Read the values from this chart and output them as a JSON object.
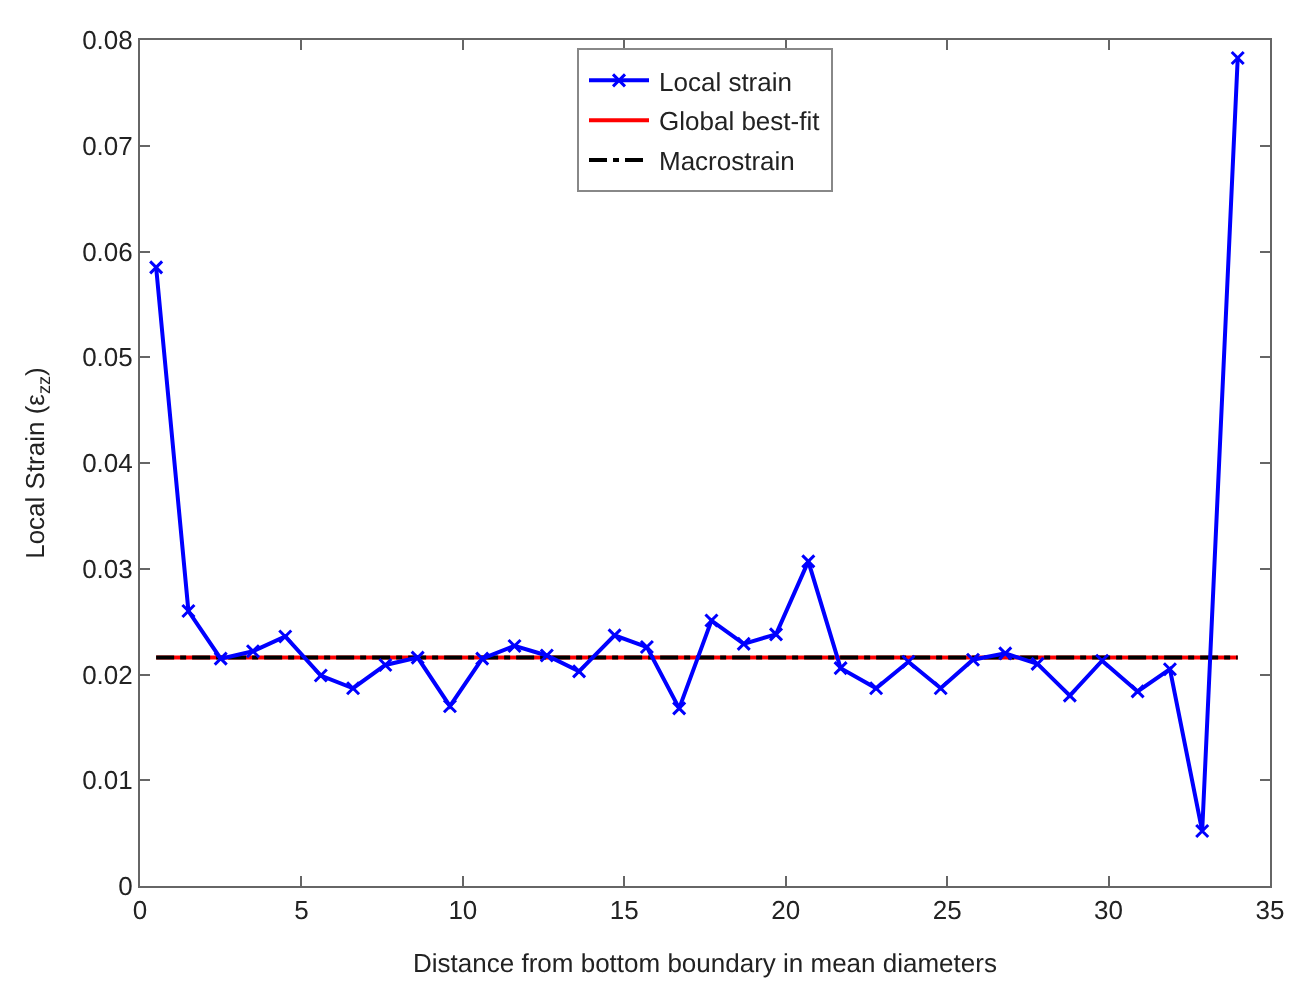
{
  "chart_data": {
    "type": "line",
    "xlabel": "Distance from bottom boundary in mean diameters",
    "ylabel": "Local Strain (ε$_{zz}$)",
    "xlim": [
      0,
      35
    ],
    "xticks": [
      0,
      5,
      10,
      15,
      20,
      25,
      30,
      35
    ],
    "ylim": [
      0,
      0.08
    ],
    "yticks": [
      0,
      0.01,
      0.02,
      0.03,
      0.04,
      0.05,
      0.06,
      0.07,
      0.08
    ],
    "legend": "top",
    "series": [
      {
        "name": "Local strain",
        "color": "#0000ff",
        "marker": "cross",
        "line_style": "solid",
        "x": [
          0.5,
          1.5,
          2.5,
          3.5,
          4.5,
          5.6,
          6.6,
          7.6,
          8.6,
          9.6,
          10.6,
          11.6,
          12.6,
          13.6,
          14.7,
          15.7,
          16.7,
          17.7,
          18.7,
          19.7,
          20.7,
          21.7,
          22.8,
          23.8,
          24.8,
          25.8,
          26.8,
          27.8,
          28.8,
          29.8,
          30.9,
          31.9,
          32.9,
          34.0
        ],
        "values": [
          0.0585,
          0.026,
          0.0215,
          0.0222,
          0.0236,
          0.0199,
          0.0187,
          0.0209,
          0.0216,
          0.017,
          0.0215,
          0.0227,
          0.0218,
          0.0203,
          0.0237,
          0.0226,
          0.0168,
          0.0251,
          0.0229,
          0.0238,
          0.0307,
          0.0206,
          0.0187,
          0.0212,
          0.0187,
          0.0214,
          0.022,
          0.021,
          0.018,
          0.0213,
          0.0184,
          0.0205,
          0.0052,
          0.0783
        ]
      },
      {
        "name": "Global best-fit",
        "color": "#ff0000",
        "marker": "none",
        "line_style": "solid",
        "x": [
          0.5,
          34.0
        ],
        "values": [
          0.0216,
          0.0216
        ]
      },
      {
        "name": "Macrostrain",
        "color": "#000000",
        "marker": "none",
        "line_style": "dashdot",
        "x": [
          0.5,
          34.0
        ],
        "values": [
          0.0216,
          0.0216
        ]
      }
    ]
  }
}
